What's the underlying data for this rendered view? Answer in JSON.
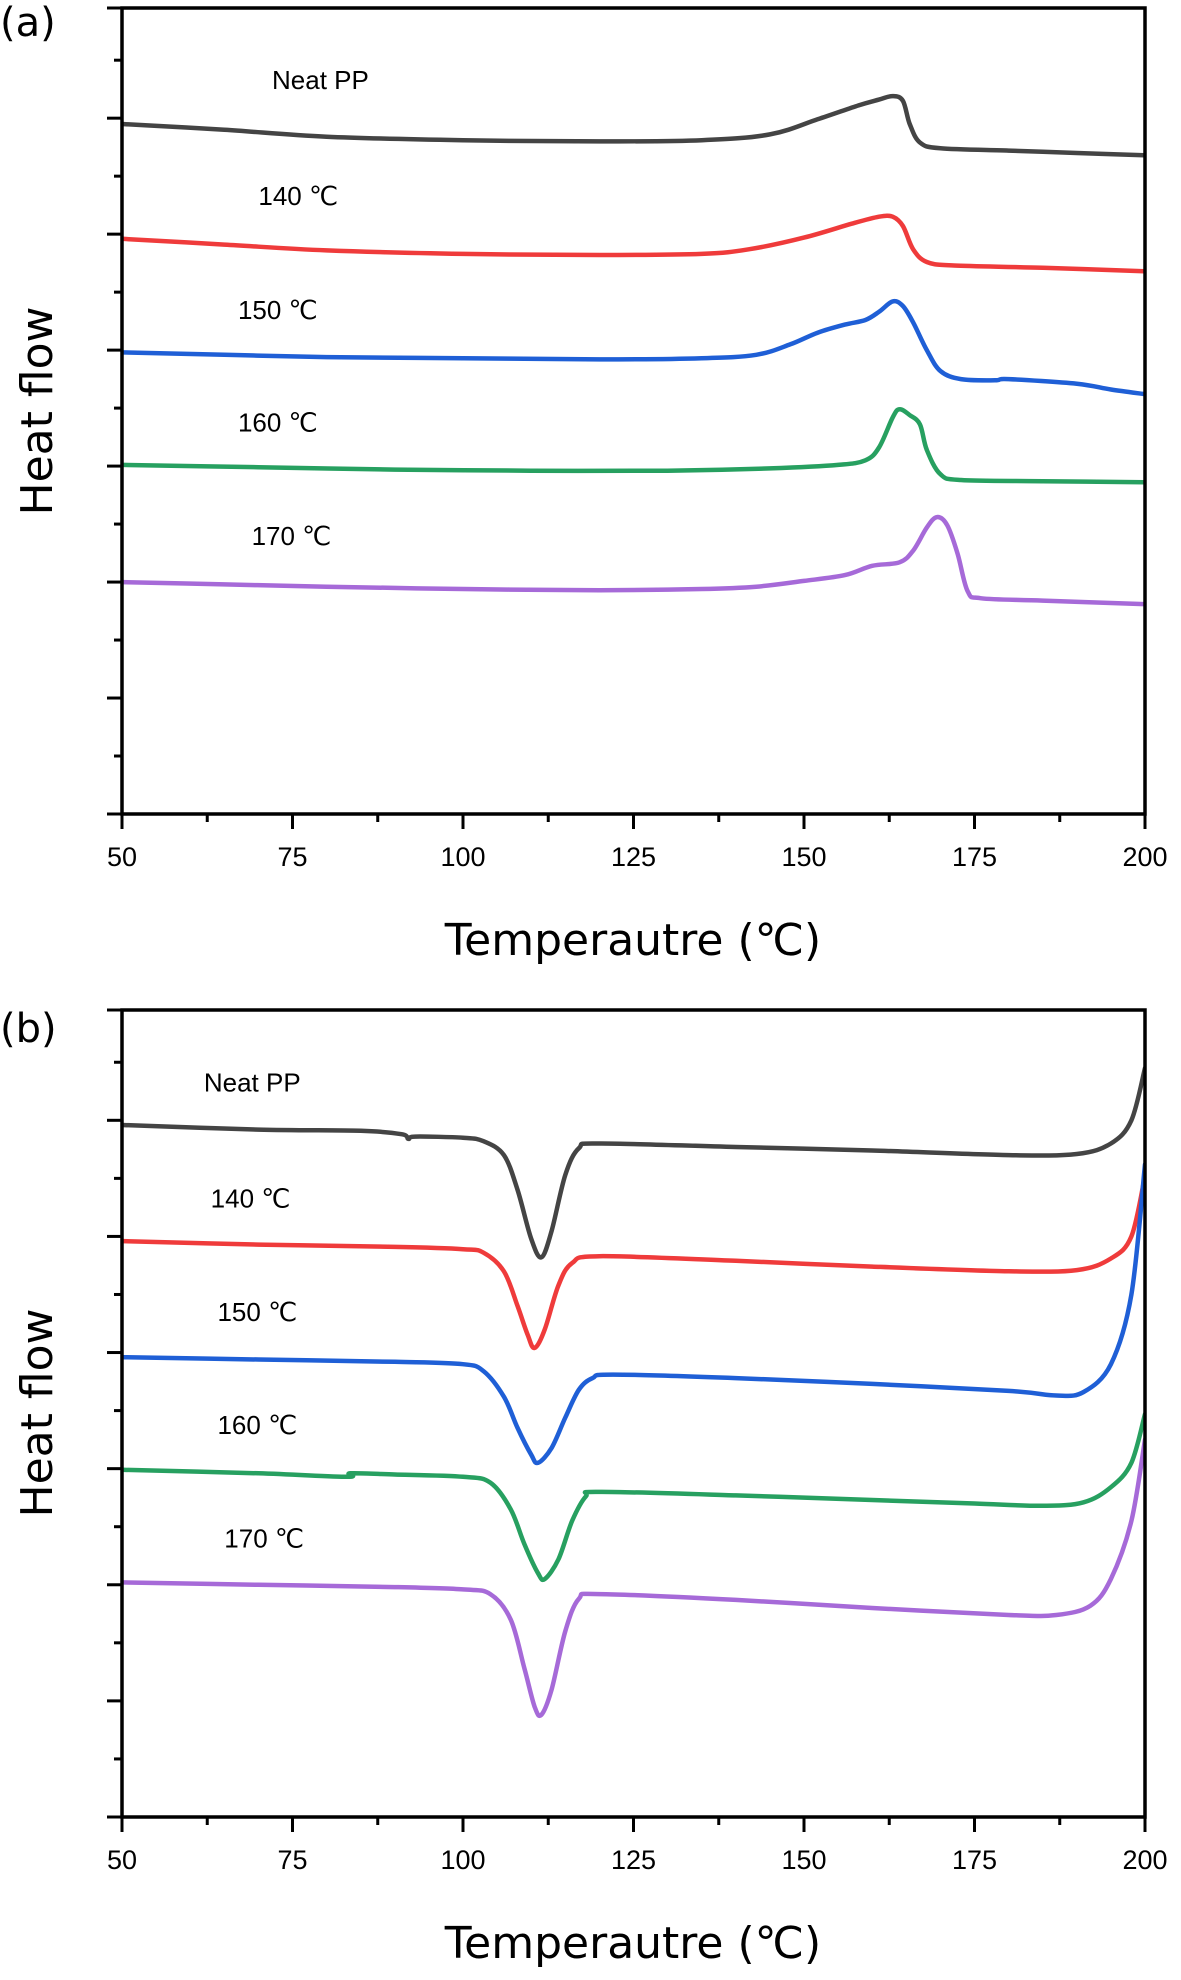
{
  "chart_data": [
    {
      "panel": "(a)",
      "type": "line",
      "title": "",
      "xlabel": "Temperautre (℃)",
      "ylabel": "Heat flow",
      "xlim": [
        50,
        200
      ],
      "ylim": [
        0,
        6.95
      ],
      "xticks": [
        50,
        75,
        100,
        125,
        150,
        175,
        200
      ],
      "x_minor_step": 12.5,
      "y_major_step": 1,
      "y_minor_step": 0.5,
      "y_tick_labels_shown": false,
      "grid": false,
      "series": [
        {
          "name": "Neat PP",
          "color": "#444444",
          "label_pos": [
            72,
            6.25
          ],
          "points": [
            [
              50,
              5.95
            ],
            [
              65,
              5.9
            ],
            [
              80,
              5.84
            ],
            [
              100,
              5.81
            ],
            [
              120,
              5.8
            ],
            [
              135,
              5.81
            ],
            [
              145,
              5.86
            ],
            [
              152,
              5.99
            ],
            [
              158,
              6.11
            ],
            [
              161,
              6.16
            ],
            [
              163,
              6.19
            ],
            [
              164.5,
              6.15
            ],
            [
              165.5,
              5.95
            ],
            [
              167,
              5.79
            ],
            [
              170,
              5.74
            ],
            [
              180,
              5.72
            ],
            [
              190,
              5.7
            ],
            [
              200,
              5.68
            ]
          ]
        },
        {
          "name": "140 ℃",
          "color": "#ef3b3b",
          "label_pos": [
            70,
            5.25
          ],
          "points": [
            [
              50,
              4.96
            ],
            [
              65,
              4.91
            ],
            [
              80,
              4.86
            ],
            [
              100,
              4.83
            ],
            [
              120,
              4.82
            ],
            [
              135,
              4.83
            ],
            [
              142,
              4.87
            ],
            [
              150,
              4.97
            ],
            [
              157,
              5.09
            ],
            [
              161,
              5.15
            ],
            [
              163,
              5.15
            ],
            [
              164.5,
              5.07
            ],
            [
              166,
              4.87
            ],
            [
              168,
              4.76
            ],
            [
              172,
              4.73
            ],
            [
              185,
              4.71
            ],
            [
              200,
              4.68
            ]
          ]
        },
        {
          "name": "150 ℃",
          "color": "#1f5fd6",
          "label_pos": [
            67,
            4.27
          ],
          "points": [
            [
              50,
              3.98
            ],
            [
              65,
              3.96
            ],
            [
              80,
              3.94
            ],
            [
              100,
              3.93
            ],
            [
              120,
              3.92
            ],
            [
              135,
              3.93
            ],
            [
              143,
              3.96
            ],
            [
              148,
              4.05
            ],
            [
              152,
              4.15
            ],
            [
              156,
              4.22
            ],
            [
              159,
              4.26
            ],
            [
              161,
              4.33
            ],
            [
              163,
              4.42
            ],
            [
              164.5,
              4.38
            ],
            [
              166,
              4.24
            ],
            [
              168,
              4.0
            ],
            [
              170,
              3.82
            ],
            [
              173,
              3.75
            ],
            [
              178,
              3.74
            ],
            [
              180,
              3.75
            ],
            [
              190,
              3.71
            ],
            [
              195,
              3.66
            ],
            [
              200,
              3.62
            ]
          ]
        },
        {
          "name": "160 ℃",
          "color": "#27a060",
          "label_pos": [
            67,
            3.3
          ],
          "points": [
            [
              50,
              3.01
            ],
            [
              70,
              2.99
            ],
            [
              90,
              2.97
            ],
            [
              110,
              2.96
            ],
            [
              130,
              2.96
            ],
            [
              145,
              2.98
            ],
            [
              155,
              3.01
            ],
            [
              159,
              3.05
            ],
            [
              161,
              3.16
            ],
            [
              163,
              3.42
            ],
            [
              164,
              3.49
            ],
            [
              165.5,
              3.44
            ],
            [
              167,
              3.36
            ],
            [
              168,
              3.14
            ],
            [
              170,
              2.93
            ],
            [
              173,
              2.88
            ],
            [
              185,
              2.87
            ],
            [
              200,
              2.86
            ]
          ]
        },
        {
          "name": "170 ℃",
          "color": "#a66ad8",
          "label_pos": [
            69,
            2.32
          ],
          "points": [
            [
              50,
              2.0
            ],
            [
              65,
              1.98
            ],
            [
              80,
              1.96
            ],
            [
              100,
              1.94
            ],
            [
              120,
              1.93
            ],
            [
              135,
              1.94
            ],
            [
              143,
              1.96
            ],
            [
              150,
              2.01
            ],
            [
              156,
              2.06
            ],
            [
              160,
              2.14
            ],
            [
              164,
              2.17
            ],
            [
              166,
              2.27
            ],
            [
              168,
              2.47
            ],
            [
              169.5,
              2.56
            ],
            [
              171,
              2.49
            ],
            [
              172.5,
              2.25
            ],
            [
              174,
              1.92
            ],
            [
              176,
              1.86
            ],
            [
              185,
              1.84
            ],
            [
              200,
              1.81
            ]
          ]
        }
      ]
    },
    {
      "panel": "(b)",
      "type": "line",
      "title": "",
      "xlabel": "Temperautre (℃)",
      "ylabel": "Heat flow",
      "xlim": [
        50,
        200
      ],
      "ylim": [
        0,
        6.95
      ],
      "xticks": [
        50,
        75,
        100,
        125,
        150,
        175,
        200
      ],
      "x_minor_step": 12.5,
      "y_major_step": 1,
      "y_minor_step": 0.5,
      "y_tick_labels_shown": false,
      "grid": false,
      "series": [
        {
          "name": "Neat PP",
          "color": "#444444",
          "label_pos": [
            62,
            6.25
          ],
          "points": [
            [
              50,
              5.96
            ],
            [
              70,
              5.92
            ],
            [
              85,
              5.91
            ],
            [
              91,
              5.88
            ],
            [
              92,
              5.84
            ],
            [
              93,
              5.86
            ],
            [
              100,
              5.85
            ],
            [
              103,
              5.82
            ],
            [
              106,
              5.7
            ],
            [
              108,
              5.4
            ],
            [
              110,
              4.98
            ],
            [
              111.5,
              4.82
            ],
            [
              113,
              5.05
            ],
            [
              115,
              5.53
            ],
            [
              117,
              5.76
            ],
            [
              120,
              5.8
            ],
            [
              140,
              5.77
            ],
            [
              160,
              5.74
            ],
            [
              180,
              5.7
            ],
            [
              190,
              5.71
            ],
            [
              195,
              5.8
            ],
            [
              198,
              6.0
            ],
            [
              200,
              6.45
            ]
          ]
        },
        {
          "name": "140 ℃",
          "color": "#ef3b3b",
          "label_pos": [
            63,
            5.25
          ],
          "points": [
            [
              50,
              4.96
            ],
            [
              70,
              4.93
            ],
            [
              90,
              4.91
            ],
            [
              100,
              4.89
            ],
            [
              103,
              4.86
            ],
            [
              106,
              4.7
            ],
            [
              108,
              4.4
            ],
            [
              109.5,
              4.15
            ],
            [
              110.5,
              4.04
            ],
            [
              112,
              4.2
            ],
            [
              114,
              4.58
            ],
            [
              116,
              4.77
            ],
            [
              120,
              4.83
            ],
            [
              140,
              4.79
            ],
            [
              160,
              4.74
            ],
            [
              180,
              4.7
            ],
            [
              190,
              4.71
            ],
            [
              195,
              4.81
            ],
            [
              198,
              5.0
            ],
            [
              200,
              5.52
            ]
          ]
        },
        {
          "name": "150 ℃",
          "color": "#1f5fd6",
          "label_pos": [
            64,
            4.27
          ],
          "points": [
            [
              50,
              3.96
            ],
            [
              70,
              3.94
            ],
            [
              90,
              3.92
            ],
            [
              100,
              3.9
            ],
            [
              103,
              3.84
            ],
            [
              106,
              3.62
            ],
            [
              108,
              3.35
            ],
            [
              110,
              3.12
            ],
            [
              111,
              3.05
            ],
            [
              113,
              3.18
            ],
            [
              115,
              3.44
            ],
            [
              117,
              3.68
            ],
            [
              119,
              3.78
            ],
            [
              122,
              3.81
            ],
            [
              140,
              3.78
            ],
            [
              160,
              3.73
            ],
            [
              180,
              3.67
            ],
            [
              187,
              3.63
            ],
            [
              191,
              3.66
            ],
            [
              195,
              3.9
            ],
            [
              198,
              4.5
            ],
            [
              200,
              5.62
            ]
          ]
        },
        {
          "name": "160 ℃",
          "color": "#27a060",
          "label_pos": [
            64,
            3.3
          ],
          "points": [
            [
              50,
              2.99
            ],
            [
              70,
              2.96
            ],
            [
              83,
              2.93
            ],
            [
              83.5,
              2.96
            ],
            [
              90,
              2.95
            ],
            [
              100,
              2.93
            ],
            [
              104,
              2.88
            ],
            [
              107,
              2.65
            ],
            [
              109,
              2.35
            ],
            [
              111,
              2.1
            ],
            [
              112,
              2.05
            ],
            [
              114,
              2.22
            ],
            [
              116,
              2.55
            ],
            [
              118,
              2.76
            ],
            [
              120,
              2.8
            ],
            [
              140,
              2.77
            ],
            [
              160,
              2.73
            ],
            [
              175,
              2.7
            ],
            [
              185,
              2.68
            ],
            [
              191,
              2.71
            ],
            [
              195,
              2.84
            ],
            [
              198,
              3.05
            ],
            [
              200,
              3.47
            ]
          ]
        },
        {
          "name": "170 ℃",
          "color": "#a66ad8",
          "label_pos": [
            65,
            2.32
          ],
          "points": [
            [
              50,
              2.02
            ],
            [
              70,
              2.0
            ],
            [
              90,
              1.98
            ],
            [
              100,
              1.96
            ],
            [
              104,
              1.92
            ],
            [
              107,
              1.7
            ],
            [
              109,
              1.28
            ],
            [
              110.5,
              0.95
            ],
            [
              111.5,
              0.88
            ],
            [
              113,
              1.1
            ],
            [
              115,
              1.6
            ],
            [
              117,
              1.88
            ],
            [
              120,
              1.92
            ],
            [
              140,
              1.87
            ],
            [
              160,
              1.8
            ],
            [
              180,
              1.74
            ],
            [
              187,
              1.74
            ],
            [
              192,
              1.82
            ],
            [
              195,
              2.05
            ],
            [
              198,
              2.55
            ],
            [
              200,
              3.25
            ]
          ]
        }
      ]
    }
  ]
}
